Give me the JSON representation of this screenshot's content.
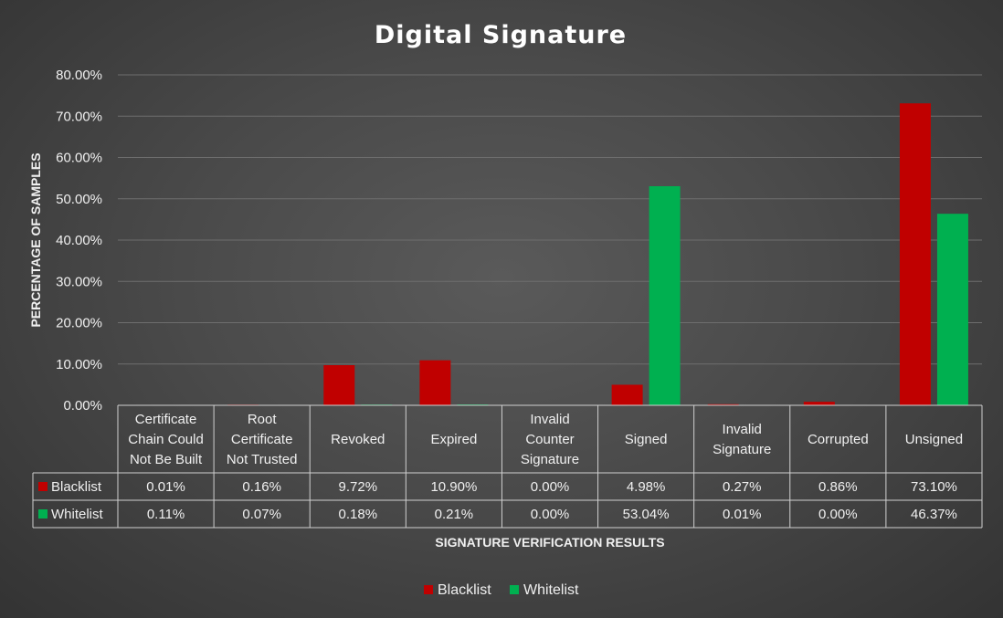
{
  "chart_data": {
    "type": "bar",
    "title": "Digital Signature",
    "xlabel": "SIGNATURE VERIFICATION RESULTS",
    "ylabel": "PERCENTAGE OF SAMPLES",
    "ylim": [
      0,
      80
    ],
    "yticks": [
      "0.00%",
      "10.00%",
      "20.00%",
      "30.00%",
      "40.00%",
      "50.00%",
      "60.00%",
      "70.00%",
      "80.00%"
    ],
    "grid": true,
    "legend_position": "bottom",
    "categories": [
      [
        "Certificate",
        "Chain Could",
        "Not Be Built"
      ],
      [
        "Root",
        "Certificate",
        "Not Trusted"
      ],
      [
        "Revoked"
      ],
      [
        "Expired"
      ],
      [
        "Invalid",
        "Counter",
        "Signature"
      ],
      [
        "Signed"
      ],
      [
        "Invalid",
        "Signature"
      ],
      [
        "Corrupted"
      ],
      [
        "Unsigned"
      ]
    ],
    "series": [
      {
        "name": "Blacklist",
        "color": "#c00000",
        "values": [
          0.01,
          0.16,
          9.72,
          10.9,
          0.0,
          4.98,
          0.27,
          0.86,
          73.1
        ],
        "labels": [
          "0.01%",
          "0.16%",
          "9.72%",
          "10.90%",
          "0.00%",
          "4.98%",
          "0.27%",
          "0.86%",
          "73.10%"
        ]
      },
      {
        "name": "Whitelist",
        "color": "#00b050",
        "values": [
          0.11,
          0.07,
          0.18,
          0.21,
          0.0,
          53.04,
          0.01,
          0.0,
          46.37
        ],
        "labels": [
          "0.11%",
          "0.07%",
          "0.18%",
          "0.21%",
          "0.00%",
          "53.04%",
          "0.01%",
          "0.00%",
          "46.37%"
        ]
      }
    ]
  }
}
